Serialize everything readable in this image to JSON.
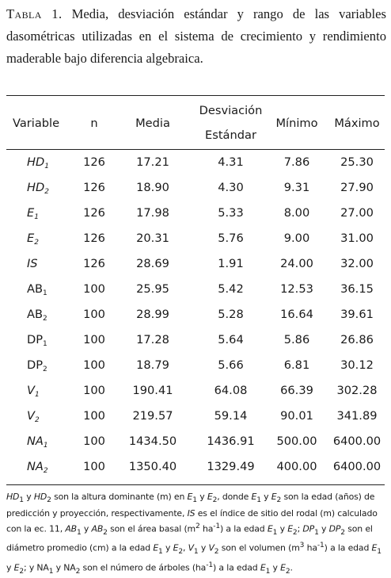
{
  "caption": {
    "label": "Tabla 1.",
    "text": "Media, desviación estándar y rango de las variables dasométricas utilizadas en el sistema de crecimiento y rendimiento maderable bajo diferencia algebraica."
  },
  "table": {
    "headers": {
      "variable": "Variable",
      "n": "n",
      "media": "Media",
      "desviacion_line1": "Desviación",
      "desviacion_line2": "Estándar",
      "minimo": "Mínimo",
      "maximo": "Máximo"
    },
    "rows": [
      {
        "base": "HD",
        "sub": "1",
        "italic": true,
        "n": "126",
        "media": "17.21",
        "desv": "4.31",
        "min": "7.86",
        "max": "25.30"
      },
      {
        "base": "HD",
        "sub": "2",
        "italic": true,
        "n": "126",
        "media": "18.90",
        "desv": "4.30",
        "min": "9.31",
        "max": "27.90"
      },
      {
        "base": "E",
        "sub": "1",
        "italic": true,
        "n": "126",
        "media": "17.98",
        "desv": "5.33",
        "min": "8.00",
        "max": "27.00"
      },
      {
        "base": "E",
        "sub": "2",
        "italic": true,
        "n": "126",
        "media": "20.31",
        "desv": "5.76",
        "min": "9.00",
        "max": "31.00"
      },
      {
        "base": "IS",
        "sub": "",
        "italic": true,
        "n": "126",
        "media": "28.69",
        "desv": "1.91",
        "min": "24.00",
        "max": "32.00"
      },
      {
        "base": "AB",
        "sub": "1",
        "italic": false,
        "n": "100",
        "media": "25.95",
        "desv": "5.42",
        "min": "12.53",
        "max": "36.15"
      },
      {
        "base": "AB",
        "sub": "2",
        "italic": false,
        "n": "100",
        "media": "28.99",
        "desv": "5.28",
        "min": "16.64",
        "max": "39.61"
      },
      {
        "base": "DP",
        "sub": "1",
        "italic": false,
        "n": "100",
        "media": "17.28",
        "desv": "5.64",
        "min": "5.86",
        "max": "26.86"
      },
      {
        "base": "DP",
        "sub": "2",
        "italic": false,
        "n": "100",
        "media": "18.79",
        "desv": "5.66",
        "min": "6.81",
        "max": "30.12"
      },
      {
        "base": "V",
        "sub": "1",
        "italic": true,
        "n": "100",
        "media": "190.41",
        "desv": "64.08",
        "min": "66.39",
        "max": "302.28"
      },
      {
        "base": "V",
        "sub": "2",
        "italic": true,
        "n": "100",
        "media": "219.57",
        "desv": "59.14",
        "min": "90.01",
        "max": "341.89"
      },
      {
        "base": "NA",
        "sub": "1",
        "italic": true,
        "n": "100",
        "media": "1434.50",
        "desv": "1436.91",
        "min": "500.00",
        "max": "6400.00"
      },
      {
        "base": "NA",
        "sub": "2",
        "italic": true,
        "n": "100",
        "media": "1350.40",
        "desv": "1329.49",
        "min": "400.00",
        "max": "6400.00"
      }
    ]
  },
  "footnote": {
    "p1": "HD",
    "p2": " y ",
    "p3": "HD",
    "p4": " son la altura dominante (m) en ",
    "p5": "E",
    "p6": " y ",
    "p7": "E",
    "p8": ", donde ",
    "p9": "E",
    "p10": " y ",
    "p11": "E",
    "p12": " son la edad (años) de predicción y proyección, respectivamente, ",
    "p13": "IS",
    "p14": " es el índice de sitio del rodal (m) calculado con la ec. 11, ",
    "p15": "AB",
    "p16": " y ",
    "p17": "AB",
    "p18": " son el área basal (m",
    "p19": " ha",
    "p20": ") a la edad ",
    "p21": "E",
    "p22": " y ",
    "p23": "E",
    "p24": "; ",
    "p25": "DP",
    "p26": " y ",
    "p27": "DP",
    "p28": " son el diámetro promedio (cm) a la edad ",
    "p29": "E",
    "p30": " y ",
    "p31": "E",
    "p32": ", ",
    "p33": "V",
    "p34": " y ",
    "p35": "V",
    "p36": " son el volumen (m",
    "p37": " ha",
    "p38": ") a la edad ",
    "p39": "E",
    "p40": " y ",
    "p41": "E",
    "p42": "; y NA",
    "p43": " y NA",
    "p44": " son el número de árboles (ha",
    "p45": ") a la edad ",
    "p46": "E",
    "p47": " y ",
    "p48": "E",
    "p49": ".",
    "sub1": "1",
    "sub2": "2",
    "sup2": "2",
    "sup3": "3",
    "supneg1": "-1"
  }
}
